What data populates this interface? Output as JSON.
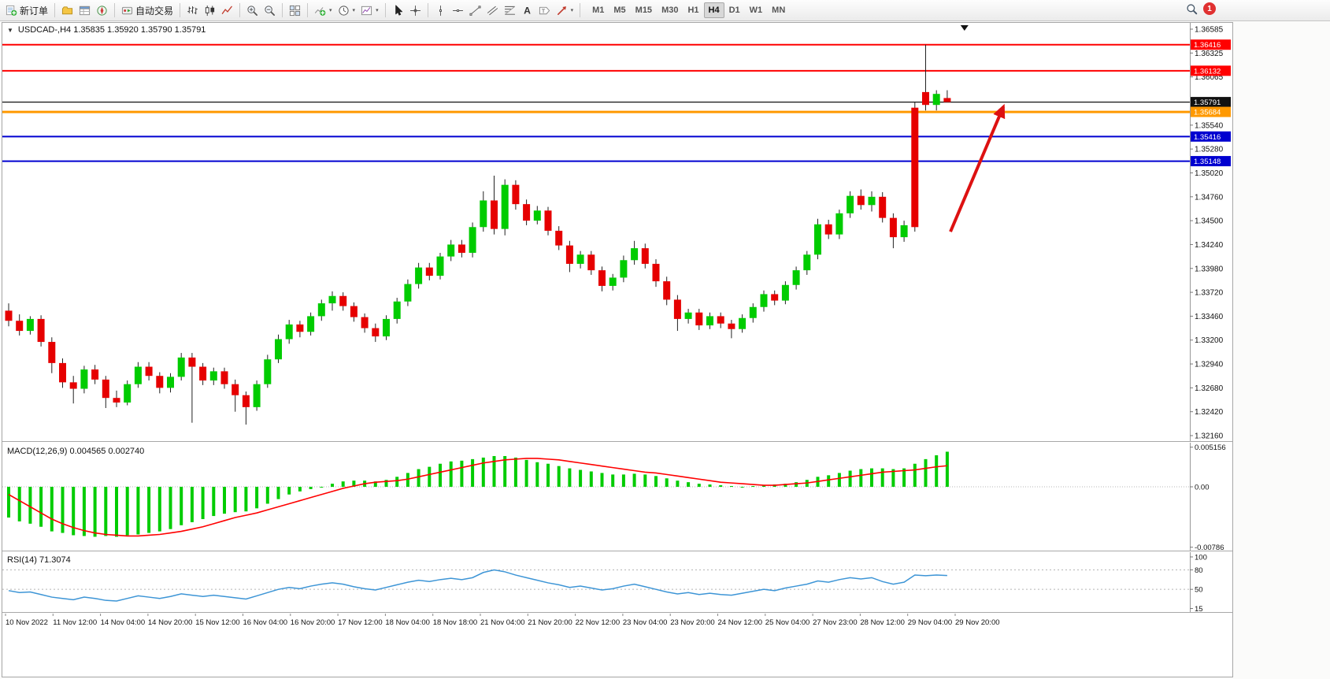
{
  "toolbar": {
    "notification_count": "1",
    "groups": [
      [
        {
          "name": "new-order",
          "icon": "new-order-icon",
          "label": "新订单"
        }
      ],
      [
        {
          "name": "chart-profiles",
          "icon": "profiles-icon"
        },
        {
          "name": "market-watch",
          "icon": "market-watch-icon"
        },
        {
          "name": "navigator",
          "icon": "navigator-icon"
        }
      ],
      [
        {
          "name": "autotrading",
          "icon": "autotrading-icon",
          "label": "自动交易"
        }
      ],
      [
        {
          "name": "bar-chart",
          "icon": "bars-icon"
        },
        {
          "name": "candlestick-chart",
          "icon": "candles-icon"
        },
        {
          "name": "line-chart",
          "icon": "line-chart-icon"
        }
      ],
      [
        {
          "name": "zoom-in",
          "icon": "zoom-in-icon"
        },
        {
          "name": "zoom-out",
          "icon": "zoom-out-icon"
        }
      ],
      [
        {
          "name": "tile-windows",
          "icon": "tile-icon"
        }
      ],
      [
        {
          "name": "indicators",
          "icon": "indicators-icon",
          "caret": true
        },
        {
          "name": "periods",
          "icon": "clock-icon",
          "caret": true
        },
        {
          "name": "templates",
          "icon": "template-icon",
          "caret": true
        }
      ],
      [
        {
          "name": "cursor",
          "icon": "cursor-icon"
        },
        {
          "name": "crosshair",
          "icon": "crosshair-icon"
        }
      ],
      [
        {
          "name": "vertical-line",
          "icon": "vline-icon"
        },
        {
          "name": "horizontal-line",
          "icon": "hline-icon"
        },
        {
          "name": "trendline",
          "icon": "trendline-icon"
        },
        {
          "name": "equidistant-channel",
          "icon": "channel-icon"
        },
        {
          "name": "fibonacci",
          "icon": "fibo-icon"
        },
        {
          "name": "text",
          "icon": "text-icon"
        },
        {
          "name": "text-label",
          "icon": "label-icon"
        },
        {
          "name": "arrows",
          "icon": "arrows-icon",
          "caret": true
        }
      ]
    ],
    "timeframes": [
      "M1",
      "M5",
      "M15",
      "M30",
      "H1",
      "H4",
      "D1",
      "W1",
      "MN"
    ],
    "active_timeframe": "H4"
  },
  "chart": {
    "symbol": "USDCAD-",
    "period": "H4",
    "header": "USDCAD-,H4  1.35835 1.35920 1.35790 1.35791",
    "ohlc": {
      "open": "1.35835",
      "high": "1.35920",
      "low": "1.35790",
      "close": "1.35791"
    },
    "macd_label": "MACD(12,26,9) 0.004565 0.002740",
    "rsi_label": "RSI(14) 71.3074"
  },
  "chart_data": {
    "type": "candlestick",
    "symbol": "USDCAD",
    "timeframe": "H4",
    "colors": {
      "bull": "#00CC00",
      "bear": "#E60000",
      "wick": "#222222",
      "macd_hist": "#00CC00",
      "macd_signal": "#FF0000",
      "rsi_line": "#3D95D6",
      "grid": "#b5b5b5"
    },
    "price_axis": {
      "max": 1.36585,
      "min": 1.3216,
      "ticks": [
        "1.36585",
        "1.36325",
        "1.36065",
        "1.35540",
        "1.35280",
        "1.35020",
        "1.34760",
        "1.34500",
        "1.34240",
        "1.33980",
        "1.33720",
        "1.33460",
        "1.33200",
        "1.32940",
        "1.32680",
        "1.32420",
        "1.32160"
      ]
    },
    "hlines": [
      {
        "price": 1.36416,
        "label": "1.36416",
        "color": "#FF0000",
        "width": 2
      },
      {
        "price": 1.36132,
        "label": "1.36132",
        "color": "#FF0000",
        "width": 2
      },
      {
        "price": 1.35791,
        "label": "1.35791",
        "color": "#111111",
        "width": 1.2
      },
      {
        "price": 1.35684,
        "label": "1.35684",
        "color": "#FF9900",
        "width": 3
      },
      {
        "price": 1.35416,
        "label": "1.35416",
        "color": "#0000D0",
        "width": 2
      },
      {
        "price": 1.35148,
        "label": "1.35148",
        "color": "#0000D0",
        "width": 2
      }
    ],
    "candles": [
      [
        1.3352,
        1.336,
        1.3335,
        1.3341
      ],
      [
        1.3341,
        1.3348,
        1.3325,
        1.333
      ],
      [
        1.333,
        1.3346,
        1.3326,
        1.3343
      ],
      [
        1.3343,
        1.3347,
        1.3313,
        1.3318
      ],
      [
        1.3318,
        1.3323,
        1.3284,
        1.3295
      ],
      [
        1.3295,
        1.33,
        1.3268,
        1.3274
      ],
      [
        1.3274,
        1.3281,
        1.3251,
        1.3267
      ],
      [
        1.3267,
        1.3292,
        1.3262,
        1.3288
      ],
      [
        1.3288,
        1.3293,
        1.3272,
        1.3277
      ],
      [
        1.3277,
        1.3281,
        1.3246,
        1.3257
      ],
      [
        1.3257,
        1.3265,
        1.3247,
        1.3252
      ],
      [
        1.3252,
        1.3276,
        1.3249,
        1.3272
      ],
      [
        1.3272,
        1.3296,
        1.3268,
        1.3291
      ],
      [
        1.3291,
        1.3296,
        1.3276,
        1.3281
      ],
      [
        1.3281,
        1.3285,
        1.3262,
        1.3268
      ],
      [
        1.3268,
        1.3284,
        1.3263,
        1.328
      ],
      [
        1.328,
        1.3306,
        1.3276,
        1.3301
      ],
      [
        1.3301,
        1.3306,
        1.323,
        1.3291
      ],
      [
        1.3291,
        1.3295,
        1.3271,
        1.3276
      ],
      [
        1.3276,
        1.329,
        1.3271,
        1.3286
      ],
      [
        1.3286,
        1.329,
        1.3267,
        1.3272
      ],
      [
        1.3272,
        1.3277,
        1.3242,
        1.326
      ],
      [
        1.326,
        1.3264,
        1.3228,
        1.3247
      ],
      [
        1.3247,
        1.3276,
        1.3243,
        1.3272
      ],
      [
        1.3272,
        1.3304,
        1.3268,
        1.3299
      ],
      [
        1.3299,
        1.3326,
        1.3295,
        1.3321
      ],
      [
        1.3321,
        1.3342,
        1.3316,
        1.3337
      ],
      [
        1.3337,
        1.3341,
        1.3323,
        1.3329
      ],
      [
        1.3329,
        1.335,
        1.3325,
        1.3346
      ],
      [
        1.3346,
        1.3364,
        1.3341,
        1.336
      ],
      [
        1.336,
        1.3373,
        1.3352,
        1.3368
      ],
      [
        1.3368,
        1.3372,
        1.3352,
        1.3357
      ],
      [
        1.3357,
        1.3361,
        1.334,
        1.3345
      ],
      [
        1.3345,
        1.3349,
        1.3328,
        1.3333
      ],
      [
        1.3333,
        1.3338,
        1.3318,
        1.3324
      ],
      [
        1.3324,
        1.3347,
        1.332,
        1.3343
      ],
      [
        1.3343,
        1.3366,
        1.3338,
        1.3362
      ],
      [
        1.3362,
        1.3386,
        1.3357,
        1.3381
      ],
      [
        1.3381,
        1.3404,
        1.3376,
        1.3399
      ],
      [
        1.3399,
        1.3404,
        1.3385,
        1.339
      ],
      [
        1.339,
        1.3415,
        1.3386,
        1.3411
      ],
      [
        1.3411,
        1.3429,
        1.3406,
        1.3424
      ],
      [
        1.3424,
        1.3429,
        1.341,
        1.3415
      ],
      [
        1.3415,
        1.3448,
        1.341,
        1.3443
      ],
      [
        1.3443,
        1.3482,
        1.3438,
        1.3472
      ],
      [
        1.3472,
        1.3499,
        1.3435,
        1.3441
      ],
      [
        1.3441,
        1.3495,
        1.3434,
        1.3489
      ],
      [
        1.3489,
        1.3494,
        1.3462,
        1.3468
      ],
      [
        1.3468,
        1.3473,
        1.3445,
        1.345
      ],
      [
        1.345,
        1.3466,
        1.3446,
        1.3461
      ],
      [
        1.3461,
        1.3465,
        1.3434,
        1.3439
      ],
      [
        1.3439,
        1.3444,
        1.3418,
        1.3423
      ],
      [
        1.3423,
        1.3428,
        1.3394,
        1.3403
      ],
      [
        1.3403,
        1.3417,
        1.3398,
        1.3413
      ],
      [
        1.3413,
        1.3417,
        1.3391,
        1.3396
      ],
      [
        1.3396,
        1.34,
        1.3373,
        1.3379
      ],
      [
        1.3379,
        1.3392,
        1.3374,
        1.3388
      ],
      [
        1.3388,
        1.3412,
        1.3383,
        1.3407
      ],
      [
        1.3407,
        1.3428,
        1.3402,
        1.342
      ],
      [
        1.342,
        1.3425,
        1.3398,
        1.3403
      ],
      [
        1.3403,
        1.3408,
        1.3378,
        1.3384
      ],
      [
        1.3384,
        1.3389,
        1.3358,
        1.3364
      ],
      [
        1.3364,
        1.3369,
        1.333,
        1.3343
      ],
      [
        1.3343,
        1.3354,
        1.3338,
        1.335
      ],
      [
        1.335,
        1.3354,
        1.3331,
        1.3336
      ],
      [
        1.3336,
        1.335,
        1.3332,
        1.3346
      ],
      [
        1.3346,
        1.335,
        1.3333,
        1.3338
      ],
      [
        1.3338,
        1.3342,
        1.3322,
        1.3332
      ],
      [
        1.3332,
        1.3348,
        1.3328,
        1.3344
      ],
      [
        1.3344,
        1.336,
        1.3339,
        1.3356
      ],
      [
        1.3356,
        1.3374,
        1.3351,
        1.337
      ],
      [
        1.337,
        1.3374,
        1.3358,
        1.3363
      ],
      [
        1.3363,
        1.3384,
        1.3359,
        1.338
      ],
      [
        1.338,
        1.34,
        1.3375,
        1.3396
      ],
      [
        1.3396,
        1.3417,
        1.3391,
        1.3413
      ],
      [
        1.3413,
        1.3452,
        1.3408,
        1.3446
      ],
      [
        1.3446,
        1.3451,
        1.343,
        1.3435
      ],
      [
        1.3435,
        1.3462,
        1.343,
        1.3458
      ],
      [
        1.3458,
        1.3482,
        1.3453,
        1.3477
      ],
      [
        1.3477,
        1.3484,
        1.3462,
        1.3467
      ],
      [
        1.3467,
        1.3482,
        1.346,
        1.3476
      ],
      [
        1.3476,
        1.3481,
        1.3448,
        1.3453
      ],
      [
        1.3453,
        1.3458,
        1.342,
        1.3432
      ],
      [
        1.3432,
        1.345,
        1.3427,
        1.3445
      ],
      [
        1.3573,
        1.3579,
        1.3438,
        1.3443
      ],
      [
        1.359,
        1.36416,
        1.357,
        1.3576
      ],
      [
        1.3576,
        1.3592,
        1.357,
        1.3588
      ],
      [
        1.35835,
        1.3592,
        1.3579,
        1.35791
      ]
    ],
    "macd": {
      "params": "12,26,9",
      "main_value": "0.004565",
      "signal_value": "0.002740",
      "scale_max": 0.005156,
      "scale_min": -0.00786,
      "axis_labels": [
        [
          "0.005156",
          0.005156
        ],
        [
          "0.00",
          0
        ],
        [
          "-0.00786",
          -0.00786
        ]
      ],
      "histogram": [
        -0.004,
        -0.0045,
        -0.0048,
        -0.0052,
        -0.0058,
        -0.006,
        -0.0063,
        -0.0064,
        -0.0065,
        -0.0064,
        -0.0065,
        -0.0063,
        -0.0062,
        -0.006,
        -0.0058,
        -0.0055,
        -0.005,
        -0.0046,
        -0.0042,
        -0.0038,
        -0.0035,
        -0.0033,
        -0.0032,
        -0.0028,
        -0.0022,
        -0.0016,
        -0.001,
        -0.0006,
        -0.0003,
        0.0,
        0.0004,
        0.0007,
        0.0008,
        0.0008,
        0.0007,
        0.0009,
        0.0013,
        0.0018,
        0.0023,
        0.0026,
        0.003,
        0.0033,
        0.0034,
        0.0036,
        0.0038,
        0.004,
        0.004,
        0.0038,
        0.0035,
        0.0032,
        0.003,
        0.0027,
        0.0024,
        0.0022,
        0.002,
        0.0018,
        0.0016,
        0.0016,
        0.0017,
        0.0016,
        0.0014,
        0.0011,
        0.0008,
        0.0006,
        0.0004,
        0.0003,
        0.0002,
        0.0001,
        0.0,
        0.0001,
        0.0002,
        0.0003,
        0.0004,
        0.0006,
        0.0009,
        0.0013,
        0.0015,
        0.0018,
        0.0021,
        0.0023,
        0.0024,
        0.0024,
        0.0023,
        0.0024,
        0.003,
        0.0036,
        0.0041,
        0.004565
      ],
      "signal": [
        -0.001,
        -0.0018,
        -0.0026,
        -0.0034,
        -0.0042,
        -0.0048,
        -0.0053,
        -0.0057,
        -0.006,
        -0.0062,
        -0.0063,
        -0.0064,
        -0.0064,
        -0.0063,
        -0.0062,
        -0.006,
        -0.0058,
        -0.0055,
        -0.0052,
        -0.0048,
        -0.0044,
        -0.004,
        -0.0037,
        -0.0034,
        -0.003,
        -0.0026,
        -0.0022,
        -0.0018,
        -0.0014,
        -0.001,
        -0.0006,
        -0.0002,
        0.0001,
        0.0004,
        0.0006,
        0.0007,
        0.0008,
        0.001,
        0.0013,
        0.0016,
        0.0019,
        0.0022,
        0.0025,
        0.0028,
        0.0031,
        0.0033,
        0.0035,
        0.0036,
        0.0037,
        0.0037,
        0.0036,
        0.0035,
        0.0033,
        0.0031,
        0.0029,
        0.0027,
        0.0025,
        0.0023,
        0.0021,
        0.0019,
        0.0018,
        0.0016,
        0.0014,
        0.0012,
        0.001,
        0.0008,
        0.0006,
        0.0005,
        0.0004,
        0.0003,
        0.0002,
        0.0002,
        0.0003,
        0.0004,
        0.0005,
        0.0007,
        0.0009,
        0.0011,
        0.0013,
        0.0015,
        0.0017,
        0.0019,
        0.002,
        0.0021,
        0.0022,
        0.0024,
        0.0026,
        0.00274
      ]
    },
    "rsi": {
      "period": "14",
      "value": "71.3074",
      "scale_min": 15,
      "scale_max": 102,
      "levels": [
        80,
        50
      ],
      "axis_labels": [
        [
          "100",
          100
        ],
        [
          "80",
          80
        ],
        [
          "50",
          50
        ],
        [
          "15",
          15
        ]
      ],
      "values": [
        48,
        45,
        46,
        42,
        38,
        36,
        34,
        38,
        36,
        33,
        32,
        36,
        40,
        38,
        36,
        39,
        43,
        41,
        39,
        41,
        39,
        37,
        35,
        40,
        45,
        50,
        53,
        51,
        55,
        58,
        60,
        58,
        54,
        51,
        49,
        53,
        57,
        61,
        64,
        62,
        65,
        67,
        65,
        68,
        76,
        80,
        77,
        72,
        68,
        64,
        60,
        57,
        53,
        55,
        52,
        49,
        51,
        55,
        58,
        54,
        50,
        46,
        43,
        45,
        42,
        44,
        42,
        41,
        44,
        47,
        50,
        48,
        52,
        55,
        58,
        63,
        61,
        65,
        68,
        66,
        68,
        62,
        58,
        61,
        72,
        71,
        72,
        71.3
      ]
    },
    "time_labels": [
      "10 Nov 2022",
      "11 Nov 12:00",
      "14 Nov 04:00",
      "14 Nov 20:00",
      "15 Nov 12:00",
      "16 Nov 04:00",
      "16 Nov 20:00",
      "17 Nov 12:00",
      "18 Nov 04:00",
      "18 Nov 18:00",
      "21 Nov 04:00",
      "21 Nov 20:00",
      "22 Nov 12:00",
      "23 Nov 04:00",
      "23 Nov 20:00",
      "24 Nov 12:00",
      "25 Nov 04:00",
      "27 Nov 23:00",
      "28 Nov 12:00",
      "29 Nov 04:00",
      "29 Nov 20:00"
    ],
    "annotation_arrow": {
      "from_bar": 87.3,
      "from_price": 1.3438,
      "to_bar": 92.2,
      "to_price": 1.3574,
      "color": "#DD1111"
    },
    "shift_marker_bar": 88.6
  }
}
